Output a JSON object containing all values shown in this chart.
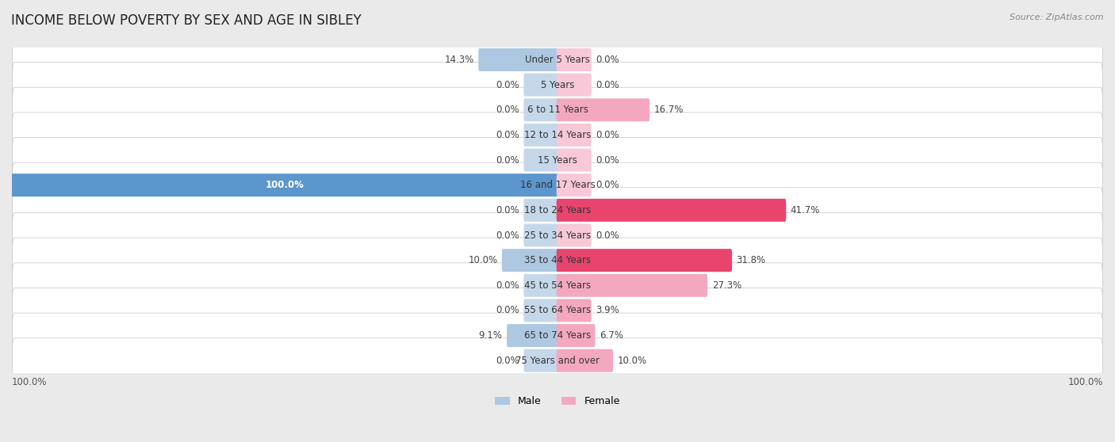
{
  "title": "INCOME BELOW POVERTY BY SEX AND AGE IN SIBLEY",
  "source": "Source: ZipAtlas.com",
  "categories": [
    "Under 5 Years",
    "5 Years",
    "6 to 11 Years",
    "12 to 14 Years",
    "15 Years",
    "16 and 17 Years",
    "18 to 24 Years",
    "25 to 34 Years",
    "35 to 44 Years",
    "45 to 54 Years",
    "55 to 64 Years",
    "65 to 74 Years",
    "75 Years and over"
  ],
  "male_values": [
    14.3,
    0.0,
    0.0,
    0.0,
    0.0,
    100.0,
    0.0,
    0.0,
    10.0,
    0.0,
    0.0,
    9.1,
    0.0
  ],
  "female_values": [
    0.0,
    0.0,
    16.7,
    0.0,
    0.0,
    0.0,
    41.7,
    0.0,
    31.8,
    27.3,
    3.9,
    6.7,
    10.0
  ],
  "male_color_light": "#adc8e0",
  "male_color_strong": "#5b96cc",
  "female_color_light": "#f4a8c0",
  "female_color_strong": "#e8456e",
  "male_min_color": "#c5d8ea",
  "female_min_color": "#f8c8d8",
  "bg_color": "#eaeaea",
  "row_bg": "#ffffff",
  "row_border": "#cccccc",
  "max_val": 100.0,
  "min_bar_width": 6.0,
  "legend_male_label": "Male",
  "legend_female_label": "Female",
  "title_fontsize": 12,
  "label_fontsize": 8.5,
  "category_fontsize": 8.5,
  "source_fontsize": 8
}
